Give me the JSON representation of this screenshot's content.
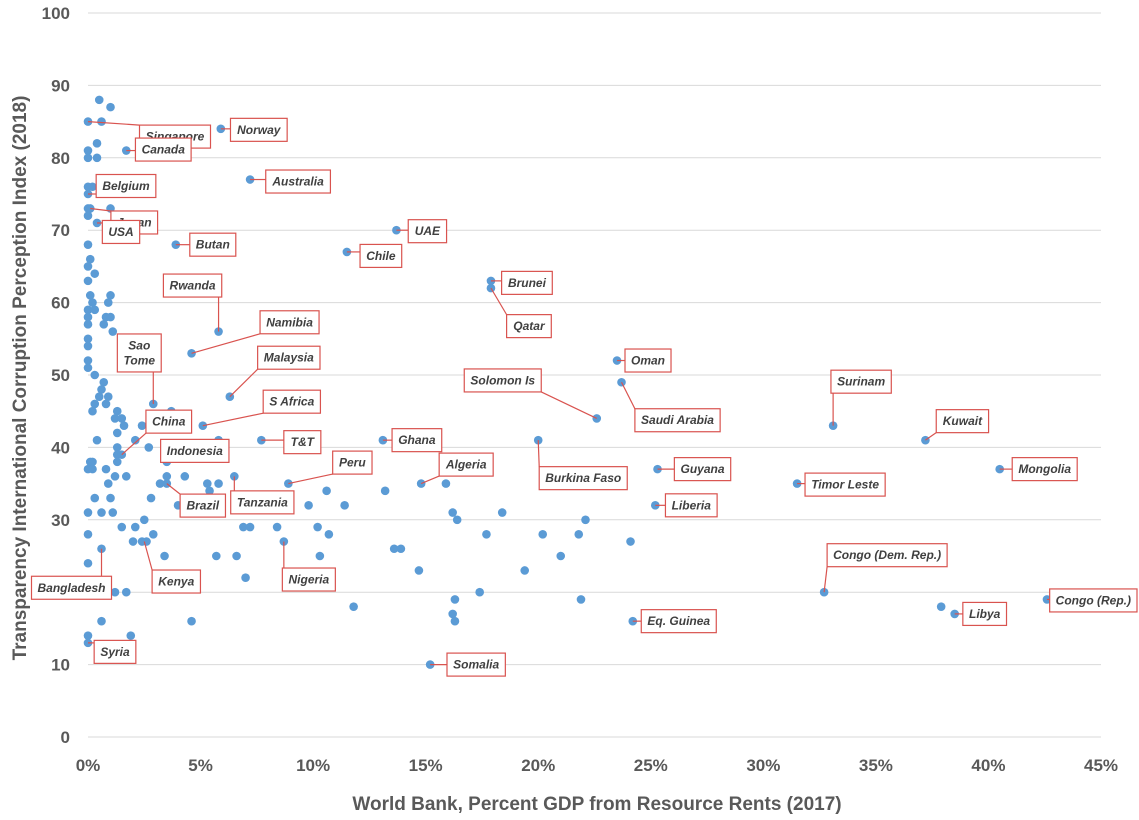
{
  "chart_data": {
    "type": "scatter",
    "title": "",
    "xlabel": "World Bank, Percent GDP from Resource Rents (2017)",
    "ylabel": "Transparency International Corruption Perception Index (2018)",
    "xlim": [
      0,
      45
    ],
    "ylim": [
      0,
      100
    ],
    "x_ticks": [
      0,
      5,
      10,
      15,
      20,
      25,
      30,
      35,
      40,
      45
    ],
    "x_tick_labels": [
      "0%",
      "5%",
      "10%",
      "15%",
      "20%",
      "25%",
      "30%",
      "35%",
      "40%",
      "45%"
    ],
    "y_ticks": [
      0,
      10,
      20,
      30,
      40,
      50,
      60,
      70,
      80,
      90,
      100
    ],
    "y_tick_labels": [
      "0",
      "10",
      "20",
      "30",
      "40",
      "50",
      "60",
      "70",
      "80",
      "90",
      "100"
    ],
    "grid": "horizontal",
    "point_color": "#5b9bd5",
    "annotation_color": "#d9534f",
    "points": [
      {
        "x": 0.0,
        "y": 85
      },
      {
        "x": 0.5,
        "y": 88
      },
      {
        "x": 1.0,
        "y": 87
      },
      {
        "x": 0.6,
        "y": 85
      },
      {
        "x": 5.9,
        "y": 84
      },
      {
        "x": 0.4,
        "y": 82
      },
      {
        "x": 0.0,
        "y": 81
      },
      {
        "x": 1.7,
        "y": 81
      },
      {
        "x": 0.0,
        "y": 80
      },
      {
        "x": 0.4,
        "y": 80
      },
      {
        "x": 7.2,
        "y": 77
      },
      {
        "x": 0.0,
        "y": 76
      },
      {
        "x": 0.2,
        "y": 76
      },
      {
        "x": 0.0,
        "y": 75
      },
      {
        "x": 0.0,
        "y": 73
      },
      {
        "x": 0.1,
        "y": 73
      },
      {
        "x": 1.0,
        "y": 73
      },
      {
        "x": 0.0,
        "y": 72
      },
      {
        "x": 0.4,
        "y": 71
      },
      {
        "x": 1.6,
        "y": 70
      },
      {
        "x": 13.7,
        "y": 70
      },
      {
        "x": 0.0,
        "y": 68
      },
      {
        "x": 3.9,
        "y": 68
      },
      {
        "x": 11.5,
        "y": 67
      },
      {
        "x": 0.1,
        "y": 66
      },
      {
        "x": 0.0,
        "y": 65
      },
      {
        "x": 0.3,
        "y": 64
      },
      {
        "x": 0.0,
        "y": 63
      },
      {
        "x": 17.9,
        "y": 63
      },
      {
        "x": 17.9,
        "y": 62
      },
      {
        "x": 0.1,
        "y": 61
      },
      {
        "x": 1.0,
        "y": 61
      },
      {
        "x": 0.2,
        "y": 60
      },
      {
        "x": 0.9,
        "y": 60
      },
      {
        "x": 0.0,
        "y": 59
      },
      {
        "x": 0.3,
        "y": 59
      },
      {
        "x": 0.0,
        "y": 58
      },
      {
        "x": 0.8,
        "y": 58
      },
      {
        "x": 1.0,
        "y": 58
      },
      {
        "x": 0.0,
        "y": 57
      },
      {
        "x": 0.7,
        "y": 57
      },
      {
        "x": 1.1,
        "y": 56
      },
      {
        "x": 5.8,
        "y": 56
      },
      {
        "x": 0.0,
        "y": 55
      },
      {
        "x": 0.0,
        "y": 54
      },
      {
        "x": 4.6,
        "y": 53
      },
      {
        "x": 0.0,
        "y": 52
      },
      {
        "x": 23.5,
        "y": 52
      },
      {
        "x": 0.0,
        "y": 51
      },
      {
        "x": 0.3,
        "y": 50
      },
      {
        "x": 0.7,
        "y": 49
      },
      {
        "x": 23.7,
        "y": 49
      },
      {
        "x": 0.6,
        "y": 48
      },
      {
        "x": 0.5,
        "y": 47
      },
      {
        "x": 0.9,
        "y": 47
      },
      {
        "x": 6.3,
        "y": 47
      },
      {
        "x": 0.3,
        "y": 46
      },
      {
        "x": 0.8,
        "y": 46
      },
      {
        "x": 2.9,
        "y": 46
      },
      {
        "x": 0.2,
        "y": 45
      },
      {
        "x": 1.3,
        "y": 45
      },
      {
        "x": 3.7,
        "y": 45
      },
      {
        "x": 1.2,
        "y": 44
      },
      {
        "x": 1.5,
        "y": 44
      },
      {
        "x": 22.6,
        "y": 44
      },
      {
        "x": 1.6,
        "y": 43
      },
      {
        "x": 2.4,
        "y": 43
      },
      {
        "x": 5.1,
        "y": 43
      },
      {
        "x": 33.1,
        "y": 43
      },
      {
        "x": 1.3,
        "y": 42
      },
      {
        "x": 0.4,
        "y": 41
      },
      {
        "x": 2.1,
        "y": 41
      },
      {
        "x": 5.8,
        "y": 41
      },
      {
        "x": 7.7,
        "y": 41
      },
      {
        "x": 13.1,
        "y": 41
      },
      {
        "x": 20.0,
        "y": 41
      },
      {
        "x": 37.2,
        "y": 41
      },
      {
        "x": 1.3,
        "y": 40
      },
      {
        "x": 2.7,
        "y": 40
      },
      {
        "x": 5.7,
        "y": 40
      },
      {
        "x": 1.3,
        "y": 39
      },
      {
        "x": 1.5,
        "y": 39
      },
      {
        "x": 0.1,
        "y": 38
      },
      {
        "x": 0.2,
        "y": 38
      },
      {
        "x": 1.3,
        "y": 38
      },
      {
        "x": 3.5,
        "y": 38
      },
      {
        "x": 0.0,
        "y": 37
      },
      {
        "x": 0.2,
        "y": 37
      },
      {
        "x": 0.8,
        "y": 37
      },
      {
        "x": 25.3,
        "y": 37
      },
      {
        "x": 40.5,
        "y": 37
      },
      {
        "x": 1.2,
        "y": 36
      },
      {
        "x": 1.7,
        "y": 36
      },
      {
        "x": 3.5,
        "y": 36
      },
      {
        "x": 4.3,
        "y": 36
      },
      {
        "x": 6.5,
        "y": 36
      },
      {
        "x": 0.9,
        "y": 35
      },
      {
        "x": 3.2,
        "y": 35
      },
      {
        "x": 3.5,
        "y": 35
      },
      {
        "x": 5.3,
        "y": 35
      },
      {
        "x": 5.8,
        "y": 35
      },
      {
        "x": 8.9,
        "y": 35
      },
      {
        "x": 14.8,
        "y": 35
      },
      {
        "x": 15.9,
        "y": 35
      },
      {
        "x": 31.5,
        "y": 35
      },
      {
        "x": 5.4,
        "y": 34
      },
      {
        "x": 10.6,
        "y": 34
      },
      {
        "x": 13.2,
        "y": 34
      },
      {
        "x": 0.3,
        "y": 33
      },
      {
        "x": 1.0,
        "y": 33
      },
      {
        "x": 2.8,
        "y": 33
      },
      {
        "x": 4.0,
        "y": 32
      },
      {
        "x": 9.8,
        "y": 32
      },
      {
        "x": 11.4,
        "y": 32
      },
      {
        "x": 25.2,
        "y": 32
      },
      {
        "x": 0.0,
        "y": 31
      },
      {
        "x": 0.6,
        "y": 31
      },
      {
        "x": 1.1,
        "y": 31
      },
      {
        "x": 16.2,
        "y": 31
      },
      {
        "x": 18.4,
        "y": 31
      },
      {
        "x": 2.5,
        "y": 30
      },
      {
        "x": 16.4,
        "y": 30
      },
      {
        "x": 22.1,
        "y": 30
      },
      {
        "x": 1.5,
        "y": 29
      },
      {
        "x": 2.1,
        "y": 29
      },
      {
        "x": 6.9,
        "y": 29
      },
      {
        "x": 7.2,
        "y": 29
      },
      {
        "x": 8.4,
        "y": 29
      },
      {
        "x": 10.2,
        "y": 29
      },
      {
        "x": 0.0,
        "y": 28
      },
      {
        "x": 2.9,
        "y": 28
      },
      {
        "x": 10.7,
        "y": 28
      },
      {
        "x": 17.7,
        "y": 28
      },
      {
        "x": 20.2,
        "y": 28
      },
      {
        "x": 21.8,
        "y": 28
      },
      {
        "x": 2.0,
        "y": 27
      },
      {
        "x": 2.4,
        "y": 27
      },
      {
        "x": 2.6,
        "y": 27
      },
      {
        "x": 8.7,
        "y": 27
      },
      {
        "x": 24.1,
        "y": 27
      },
      {
        "x": 0.6,
        "y": 26
      },
      {
        "x": 13.6,
        "y": 26
      },
      {
        "x": 13.9,
        "y": 26
      },
      {
        "x": 3.4,
        "y": 25
      },
      {
        "x": 5.7,
        "y": 25
      },
      {
        "x": 6.6,
        "y": 25
      },
      {
        "x": 10.3,
        "y": 25
      },
      {
        "x": 21.0,
        "y": 25
      },
      {
        "x": 0.0,
        "y": 24
      },
      {
        "x": 14.7,
        "y": 23
      },
      {
        "x": 19.4,
        "y": 23
      },
      {
        "x": 7.0,
        "y": 22
      },
      {
        "x": 1.2,
        "y": 20
      },
      {
        "x": 1.7,
        "y": 20
      },
      {
        "x": 17.4,
        "y": 20
      },
      {
        "x": 32.7,
        "y": 20
      },
      {
        "x": 16.3,
        "y": 19
      },
      {
        "x": 21.9,
        "y": 19
      },
      {
        "x": 42.6,
        "y": 19
      },
      {
        "x": 11.8,
        "y": 18
      },
      {
        "x": 37.9,
        "y": 18
      },
      {
        "x": 16.2,
        "y": 17
      },
      {
        "x": 38.5,
        "y": 17
      },
      {
        "x": 0.6,
        "y": 16
      },
      {
        "x": 4.6,
        "y": 16
      },
      {
        "x": 16.3,
        "y": 16
      },
      {
        "x": 24.2,
        "y": 16
      },
      {
        "x": 0.0,
        "y": 14
      },
      {
        "x": 1.9,
        "y": 14
      },
      {
        "x": 0.0,
        "y": 13
      },
      {
        "x": 15.2,
        "y": 10
      }
    ],
    "annotations": [
      {
        "label": "Singapore",
        "x": 0.0,
        "y": 85
      },
      {
        "label": "Norway",
        "x": 5.9,
        "y": 84
      },
      {
        "label": "Canada",
        "x": 1.7,
        "y": 81
      },
      {
        "label": "Australia",
        "x": 7.2,
        "y": 77
      },
      {
        "label": "Belgium",
        "x": 0.0,
        "y": 75
      },
      {
        "label": "Japan",
        "x": 0.1,
        "y": 73
      },
      {
        "label": "USA",
        "x": 0.4,
        "y": 71
      },
      {
        "label": "Butan",
        "x": 3.9,
        "y": 68
      },
      {
        "label": "UAE",
        "x": 13.7,
        "y": 70
      },
      {
        "label": "Chile",
        "x": 11.5,
        "y": 67
      },
      {
        "label": "Brunei",
        "x": 17.9,
        "y": 63
      },
      {
        "label": "Qatar",
        "x": 17.9,
        "y": 62
      },
      {
        "label": "Rwanda",
        "x": 5.8,
        "y": 56
      },
      {
        "label": "Namibia",
        "x": 4.6,
        "y": 53
      },
      {
        "label": "Sao Tome",
        "x": 2.9,
        "y": 46
      },
      {
        "label": "Malaysia",
        "x": 6.3,
        "y": 47
      },
      {
        "label": "Oman",
        "x": 23.5,
        "y": 52
      },
      {
        "label": "Solomon Is",
        "x": 22.6,
        "y": 44
      },
      {
        "label": "Saudi Arabia",
        "x": 23.7,
        "y": 49
      },
      {
        "label": "Surinam",
        "x": 33.1,
        "y": 43
      },
      {
        "label": "Kuwait",
        "x": 37.2,
        "y": 41
      },
      {
        "label": "S Africa",
        "x": 5.1,
        "y": 43
      },
      {
        "label": "China",
        "x": 1.5,
        "y": 39
      },
      {
        "label": "T&T",
        "x": 7.7,
        "y": 41
      },
      {
        "label": "Ghana",
        "x": 13.1,
        "y": 41
      },
      {
        "label": "Indonesia",
        "x": 3.5,
        "y": 38
      },
      {
        "label": "Burkina Faso",
        "x": 20.0,
        "y": 41
      },
      {
        "label": "Guyana",
        "x": 25.3,
        "y": 37
      },
      {
        "label": "Mongolia",
        "x": 40.5,
        "y": 37
      },
      {
        "label": "Peru",
        "x": 8.9,
        "y": 35
      },
      {
        "label": "Algeria",
        "x": 14.8,
        "y": 35
      },
      {
        "label": "Tanzania",
        "x": 6.5,
        "y": 36
      },
      {
        "label": "Brazil",
        "x": 3.5,
        "y": 35
      },
      {
        "label": "Timor Leste",
        "x": 31.5,
        "y": 35
      },
      {
        "label": "Liberia",
        "x": 25.2,
        "y": 32
      },
      {
        "label": "Bangladesh",
        "x": 0.6,
        "y": 26
      },
      {
        "label": "Kenya",
        "x": 2.5,
        "y": 27
      },
      {
        "label": "Nigeria",
        "x": 8.7,
        "y": 27
      },
      {
        "label": "Congo (Dem. Rep.)",
        "x": 32.7,
        "y": 20
      },
      {
        "label": "Congo (Rep.)",
        "x": 42.6,
        "y": 19
      },
      {
        "label": "Libya",
        "x": 38.5,
        "y": 17
      },
      {
        "label": "Eq. Guinea",
        "x": 24.2,
        "y": 16
      },
      {
        "label": "Somalia",
        "x": 15.2,
        "y": 10
      },
      {
        "label": "Syria",
        "x": 0.0,
        "y": 13
      }
    ]
  }
}
